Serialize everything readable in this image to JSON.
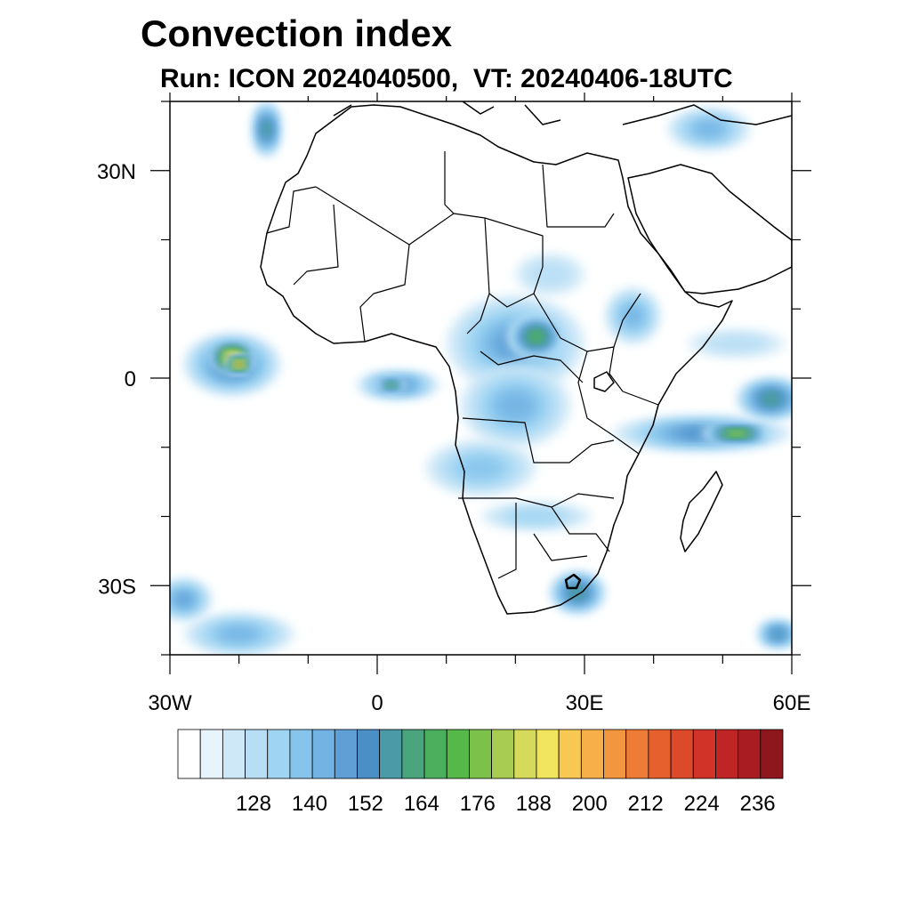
{
  "title": "Convection index",
  "subtitle": "Run: ICON 2024040500,  VT: 20240406-18UTC",
  "axes": {
    "lon_labels": [
      {
        "lon": -30,
        "text": "30W"
      },
      {
        "lon": 0,
        "text": "0"
      },
      {
        "lon": 30,
        "text": "30E"
      },
      {
        "lon": 60,
        "text": "60E"
      }
    ],
    "lat_labels": [
      {
        "lat": 30,
        "text": "30N"
      },
      {
        "lat": 0,
        "text": "0"
      },
      {
        "lat": -30,
        "text": "30S"
      }
    ],
    "lon_range": [
      -30,
      60
    ],
    "lat_range": [
      -40,
      40
    ]
  },
  "colorbar": {
    "colors": [
      "#ffffff",
      "#e8f4fb",
      "#cfe8f7",
      "#b7def5",
      "#9fd5f3",
      "#87c4ec",
      "#73b3e3",
      "#5f9fd6",
      "#4b8fc7",
      "#4a9aa8",
      "#4aa57e",
      "#4caf5e",
      "#55b848",
      "#7cc14a",
      "#a8cc52",
      "#d6da5a",
      "#f1e45e",
      "#f8c952",
      "#f7b049",
      "#f39640",
      "#ee7b36",
      "#e6602e",
      "#dc4a2a",
      "#d23328",
      "#c02526",
      "#a91d22",
      "#8e171d"
    ],
    "labels": [
      "128",
      "140",
      "152",
      "164",
      "176",
      "188",
      "200",
      "212",
      "224",
      "236"
    ]
  },
  "convection_blobs": [
    {
      "lon": -21,
      "lat": 2,
      "rlon": 7,
      "rlat": 4.5,
      "level": 8
    },
    {
      "lon": -21,
      "lat": 3,
      "rlon": 3,
      "rlat": 2,
      "level": 18
    },
    {
      "lon": -20,
      "lat": 2,
      "rlon": 1.5,
      "rlat": 1,
      "level": 21
    },
    {
      "lon": 3,
      "lat": -1,
      "rlon": 6,
      "rlat": 2,
      "level": 7
    },
    {
      "lon": 2,
      "lat": -1,
      "rlon": 2,
      "rlat": 1,
      "level": 12
    },
    {
      "lon": 20,
      "lat": 5,
      "rlon": 10,
      "rlat": 7,
      "level": 6
    },
    {
      "lon": 23,
      "lat": 6,
      "rlon": 4,
      "rlat": 3,
      "level": 11
    },
    {
      "lon": 20,
      "lat": -4,
      "rlon": 8,
      "rlat": 6,
      "level": 5
    },
    {
      "lon": 15,
      "lat": -13,
      "rlon": 8,
      "rlat": 4,
      "level": 4
    },
    {
      "lon": 37,
      "lat": 9,
      "rlon": 4,
      "rlat": 4,
      "level": 5
    },
    {
      "lon": 47,
      "lat": -8,
      "rlon": 13,
      "rlat": 2.5,
      "level": 7
    },
    {
      "lon": 52,
      "lat": -8,
      "rlon": 5,
      "rlat": 1.2,
      "level": 14
    },
    {
      "lon": 57,
      "lat": -3,
      "rlon": 5,
      "rlat": 3,
      "level": 9
    },
    {
      "lon": 29,
      "lat": -31,
      "rlon": 4,
      "rlat": 3,
      "level": 9
    },
    {
      "lon": 23,
      "lat": -20,
      "rlon": 8,
      "rlat": 2,
      "level": 3
    },
    {
      "lon": -20,
      "lat": -37,
      "rlon": 8,
      "rlat": 3,
      "level": 5
    },
    {
      "lon": -28,
      "lat": -32,
      "rlon": 4,
      "rlat": 3,
      "level": 6
    },
    {
      "lon": -16,
      "lat": 36,
      "rlon": 2,
      "rlat": 4,
      "level": 9
    },
    {
      "lon": 48,
      "lat": 36,
      "rlon": 6,
      "rlat": 3,
      "level": 5
    },
    {
      "lon": 58,
      "lat": -37,
      "rlon": 3,
      "rlat": 2,
      "level": 8
    },
    {
      "lon": 52,
      "lat": 5,
      "rlon": 7,
      "rlat": 2,
      "level": 2
    },
    {
      "lon": 25,
      "lat": 15,
      "rlon": 5,
      "rlat": 3,
      "level": 2
    }
  ]
}
